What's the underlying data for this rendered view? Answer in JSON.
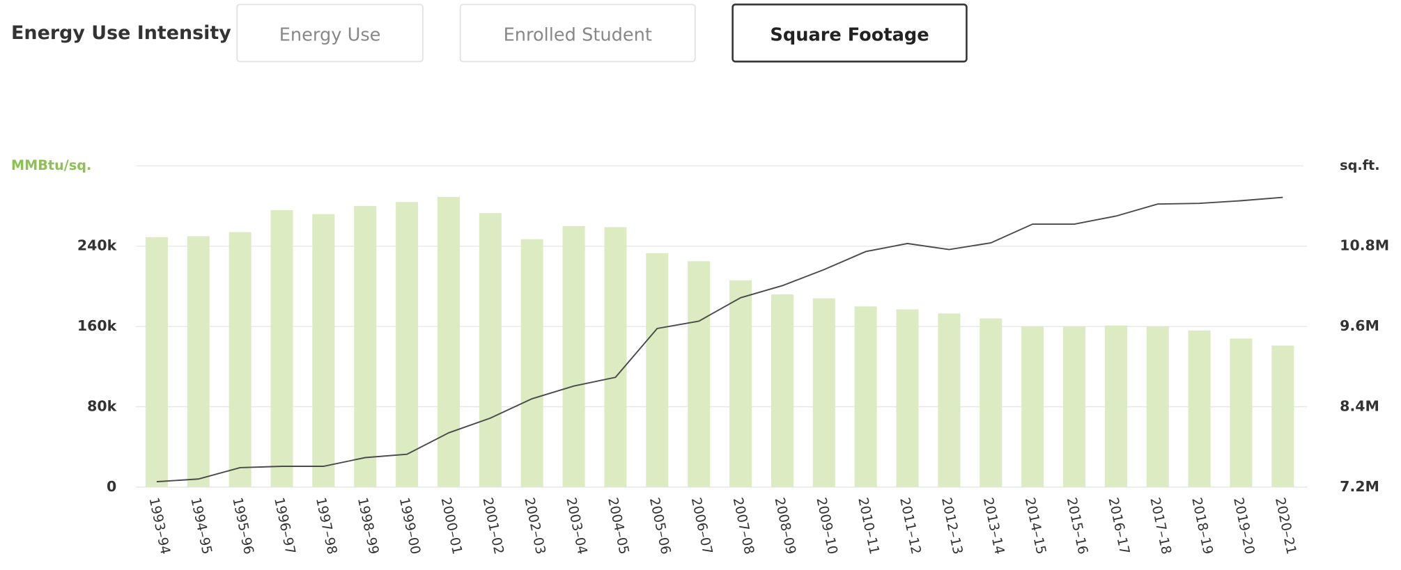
{
  "header": {
    "label": "Energy Use Intensity",
    "tabs": [
      "Energy Use",
      "Enrolled Student",
      "Square Footage"
    ],
    "active_tab": 2
  },
  "chart_data": {
    "type": "bar_line",
    "y_label": "MMBtu/sq.",
    "y2_label": "sq.ft.",
    "categories": [
      "1993–94",
      "1994–95",
      "1995–96",
      "1996–97",
      "1997–98",
      "1998–99",
      "1999–00",
      "2000–01",
      "2001–02",
      "2002–03",
      "2003–04",
      "2004–05",
      "2005–06",
      "2006–07",
      "2007–08",
      "2008–09",
      "2009–10",
      "2010–11",
      "2011–12",
      "2012–13",
      "2013–14",
      "2014–15",
      "2015–16",
      "2016–17",
      "2017–18",
      "2018–19",
      "2019–20",
      "2020–21"
    ],
    "series": [
      {
        "type": "bar",
        "color": "#dcebc2",
        "values": [
          249000,
          250000,
          254000,
          276000,
          272000,
          280000,
          284000,
          289000,
          273000,
          247000,
          260000,
          259000,
          233000,
          225000,
          206000,
          192000,
          188000,
          180000,
          177000,
          173000,
          168000,
          160000,
          160000,
          161000,
          160000,
          156000,
          148000,
          141000
        ]
      },
      {
        "type": "line",
        "axis": "y2",
        "color": "#4a4a4a",
        "values": [
          7280000,
          7320000,
          7490000,
          7510000,
          7510000,
          7640000,
          7690000,
          8010000,
          8230000,
          8520000,
          8710000,
          8840000,
          9570000,
          9680000,
          10030000,
          10210000,
          10450000,
          10720000,
          10840000,
          10750000,
          10850000,
          11130000,
          11130000,
          11250000,
          11430000,
          11440000,
          11480000,
          11530000
        ]
      }
    ],
    "ylim": [
      0,
      320000
    ],
    "yticks": [
      0,
      {
        "value": 80000,
        "label": "80k"
      },
      {
        "value": 160000,
        "label": "160k"
      },
      {
        "value": 240000,
        "label": "240k"
      }
    ],
    "y2lim": [
      7200000,
      12000000
    ],
    "y2ticks": [
      {
        "value": 7200000,
        "label": "7.2M"
      },
      {
        "value": 8400000,
        "label": "8.4M"
      },
      {
        "value": 9600000,
        "label": "9.6M"
      },
      {
        "value": 10800000,
        "label": "10.8M"
      }
    ],
    "grid": true
  }
}
